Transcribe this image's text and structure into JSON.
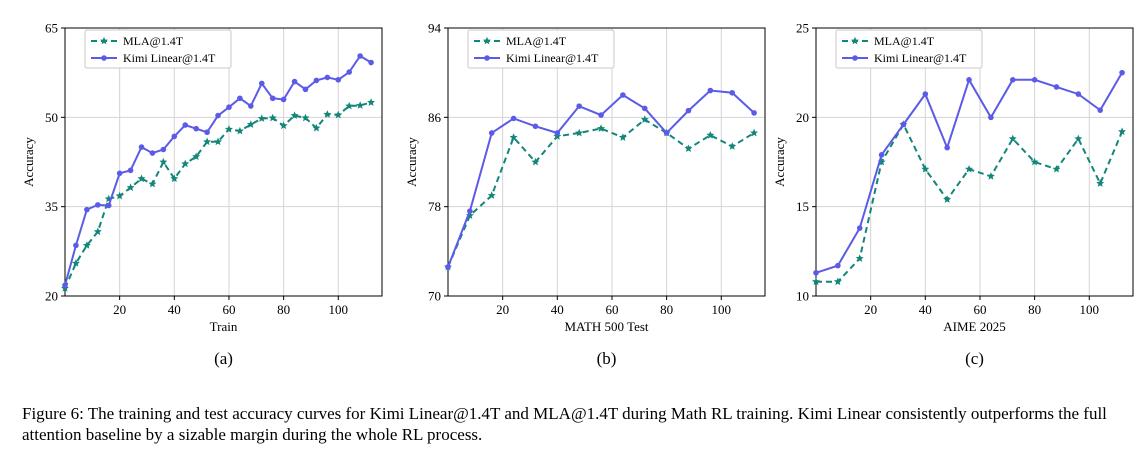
{
  "chart_data": [
    {
      "type": "line",
      "panel_label": "(a)",
      "xlabel": "Train",
      "ylabel": "Accuracy",
      "xlim": [
        0,
        116
      ],
      "ylim": [
        20,
        65
      ],
      "xticks": [
        20,
        40,
        60,
        80,
        100
      ],
      "yticks": [
        20,
        35,
        50,
        65
      ],
      "grid": true,
      "legend": "top-left",
      "series": [
        {
          "name": "MLA@1.4T",
          "color": "#13867a",
          "style": "dashed",
          "x": [
            0,
            4,
            8,
            12,
            16,
            20,
            24,
            28,
            32,
            36,
            40,
            44,
            48,
            52,
            56,
            60,
            64,
            68,
            72,
            76,
            80,
            84,
            88,
            92,
            96,
            100,
            104,
            108,
            112
          ],
          "y": [
            21.3,
            25.5,
            28.5,
            30.8,
            36.3,
            36.8,
            38.2,
            39.7,
            38.8,
            42.5,
            39.7,
            42.2,
            43.4,
            45.9,
            45.9,
            48.0,
            47.7,
            48.8,
            49.8,
            49.9,
            48.6,
            50.3,
            49.9,
            48.2,
            50.5,
            50.4,
            51.9,
            52.0,
            52.5
          ]
        },
        {
          "name": "Kimi Linear@1.4T",
          "color": "#5b5be8",
          "style": "solid",
          "x": [
            0,
            4,
            8,
            12,
            16,
            20,
            24,
            28,
            32,
            36,
            40,
            44,
            48,
            52,
            56,
            60,
            64,
            68,
            72,
            76,
            80,
            84,
            88,
            92,
            96,
            100,
            104,
            108,
            112
          ],
          "y": [
            21.8,
            28.5,
            34.5,
            35.3,
            35.2,
            40.6,
            41.1,
            45.0,
            44.0,
            44.6,
            46.8,
            48.7,
            48.1,
            47.5,
            50.3,
            51.7,
            53.2,
            51.9,
            55.7,
            53.2,
            53.0,
            56.0,
            54.7,
            56.2,
            56.7,
            56.3,
            57.6,
            60.3,
            59.2
          ]
        }
      ]
    },
    {
      "type": "line",
      "panel_label": "(b)",
      "xlabel": "MATH 500 Test",
      "ylabel": "Accuracy",
      "xlim": [
        0,
        116
      ],
      "ylim": [
        70,
        94
      ],
      "xticks": [
        20,
        40,
        60,
        80,
        100
      ],
      "yticks": [
        70,
        78,
        86,
        94
      ],
      "grid": true,
      "legend": "top-left",
      "series": [
        {
          "name": "MLA@1.4T",
          "color": "#13867a",
          "style": "dashed",
          "x": [
            0,
            8,
            16,
            24,
            32,
            40,
            48,
            56,
            64,
            72,
            80,
            88,
            96,
            104,
            112
          ],
          "y": [
            72.6,
            77.2,
            79.0,
            84.2,
            82.0,
            84.3,
            84.6,
            85.0,
            84.2,
            85.8,
            84.6,
            83.2,
            84.4,
            83.4,
            84.6
          ]
        },
        {
          "name": "Kimi Linear@1.4T",
          "color": "#5b5be8",
          "style": "solid",
          "x": [
            0,
            8,
            16,
            24,
            32,
            40,
            48,
            56,
            64,
            72,
            80,
            88,
            96,
            104,
            112
          ],
          "y": [
            72.6,
            77.6,
            84.6,
            85.9,
            85.2,
            84.6,
            87.0,
            86.2,
            88.0,
            86.8,
            84.6,
            86.6,
            88.4,
            88.2,
            86.4
          ]
        }
      ]
    },
    {
      "type": "line",
      "panel_label": "(c)",
      "xlabel": "AIME 2025",
      "ylabel": "Accuracy",
      "xlim": [
        0,
        116
      ],
      "ylim": [
        10,
        25
      ],
      "xticks": [
        20,
        40,
        60,
        80,
        100
      ],
      "yticks": [
        10,
        15,
        20,
        25
      ],
      "grid": true,
      "legend": "top-left",
      "series": [
        {
          "name": "MLA@1.4T",
          "color": "#13867a",
          "style": "dashed",
          "x": [
            0,
            8,
            16,
            24,
            32,
            40,
            48,
            56,
            64,
            72,
            80,
            88,
            96,
            104,
            112
          ],
          "y": [
            10.8,
            10.8,
            12.1,
            17.5,
            19.6,
            17.1,
            15.4,
            17.1,
            16.7,
            18.8,
            17.5,
            17.1,
            18.8,
            16.3,
            19.2
          ]
        },
        {
          "name": "Kimi Linear@1.4T",
          "color": "#5b5be8",
          "style": "solid",
          "x": [
            0,
            8,
            16,
            24,
            32,
            40,
            48,
            56,
            64,
            72,
            80,
            88,
            96,
            104,
            112
          ],
          "y": [
            11.3,
            11.7,
            13.8,
            17.9,
            19.6,
            21.3,
            18.3,
            22.1,
            20.0,
            22.1,
            22.1,
            21.7,
            21.3,
            20.4,
            22.5
          ]
        }
      ]
    }
  ],
  "caption": "Figure 6: The training and test accuracy curves for Kimi Linear@1.4T and MLA@1.4T during Math RL training. Kimi Linear consistently outperforms the full attention baseline by a sizable margin during the whole RL process."
}
